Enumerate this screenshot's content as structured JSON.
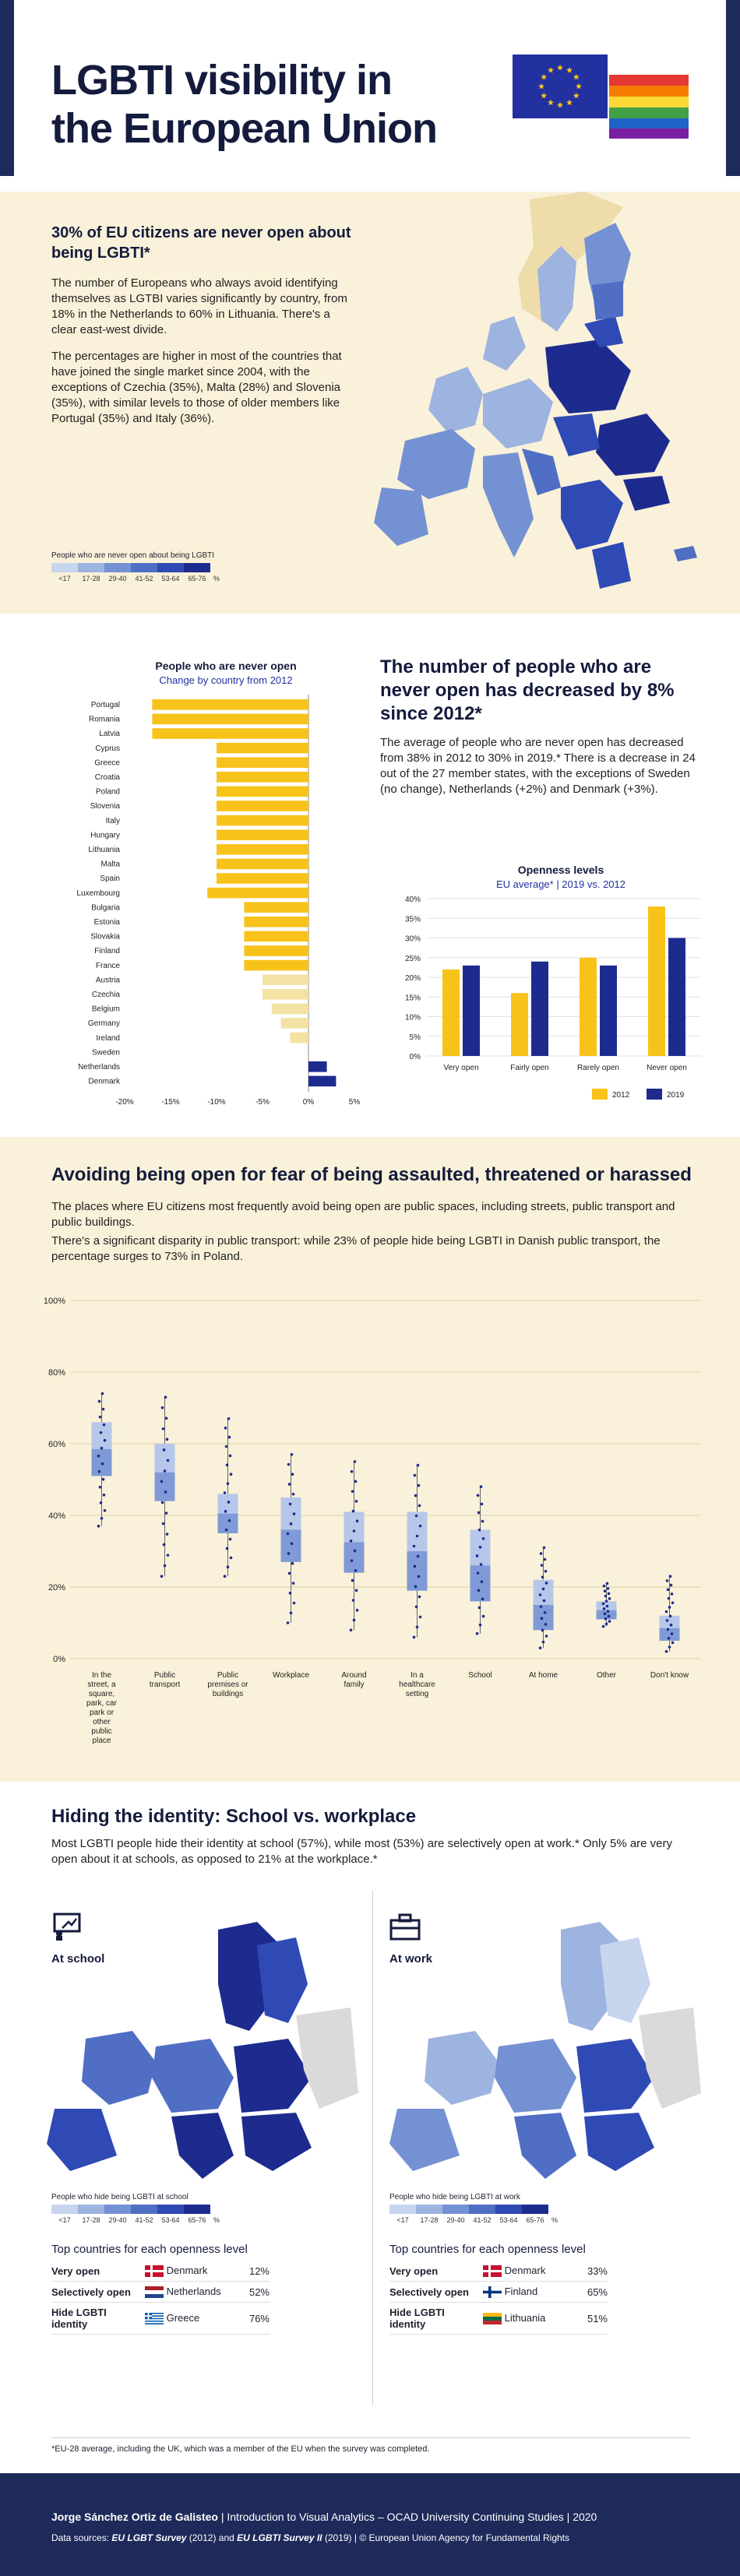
{
  "header": {
    "title_line1": "LGBTI visibility in",
    "title_line2": "the European Union",
    "flags": [
      "eu-flag",
      "rainbow-flag"
    ]
  },
  "section1": {
    "heading": "30% of EU citizens are never open about being LGBTI*",
    "p1": "The number of Europeans who always avoid identifying themselves as LGTBI varies significantly by country, from 18% in the Netherlands to 60% in Lithuania. There's a clear east-west divide.",
    "p2": "The percentages are higher in most of the countries that have joined the single market since 2004, with the exceptions of Czechia (35%), Malta (28%) and Slovenia (35%), with similar levels to those of older members like Portugal (35%) and Italy (36%).",
    "legend_title": "People who are never open about being LGBTI",
    "legend_labels": [
      "<17",
      "17-28",
      "29-40",
      "41-52",
      "53-64",
      "65-76",
      "%"
    ],
    "legend_colors": [
      "#c8d5ef",
      "#9db3e0",
      "#7491d3",
      "#4f6ec4",
      "#2f4ab5",
      "#1d2b8f"
    ]
  },
  "section2": {
    "heading": "The number of people who are never open has decreased by 8% since 2012*",
    "p1": "The average of people who are never open has decreased from 38% in 2012 to 30% in 2019.* There is a decrease in 24 out of the 27 member states, with the exceptions of Sweden (no change), Netherlands (+2%) and Denmark (+3%).",
    "colors": {
      "decrease_strong": "#f7c31b",
      "decrease_light": "#f3e2a4",
      "increase": "#1d2b8f",
      "y2012": "#f7c31b",
      "y2019": "#1d2b8f"
    }
  },
  "section3": {
    "heading": "Avoiding being open for fear of being assaulted, threatened or harassed",
    "p1": "The places where EU citizens most frequently avoid being open are public spaces, including streets, public transport and public buildings.",
    "p2": "There's a significant disparity in public transport: while 23% of people hide being LGBTI in Danish public transport, the percentage surges to 73% in Poland."
  },
  "section4": {
    "heading": "Hiding the identity: School vs. workplace",
    "p1": "Most LGBTI people hide their identity at school (57%), while most (53%) are selectively open at work.* Only 5% are very open about it at schools, as opposed to 21% at the workplace.*",
    "school": {
      "label": "At school",
      "icon": "school-icon",
      "legend_title": "People who hide being LGBTI at school",
      "top_title": "Top countries for each openness level",
      "rows": [
        {
          "level": "Very open",
          "country": "Denmark",
          "value": "12%",
          "flag": "dk"
        },
        {
          "level": "Selectively open",
          "country": "Netherlands",
          "value": "52%",
          "flag": "nl"
        },
        {
          "level": "Hide LGBTI identity",
          "country": "Greece",
          "value": "76%",
          "flag": "gr"
        }
      ]
    },
    "work": {
      "label": "At work",
      "icon": "briefcase-icon",
      "legend_title": "People who hide being LGBTI at work",
      "top_title": "Top countries for each openness level",
      "rows": [
        {
          "level": "Very open",
          "country": "Denmark",
          "value": "33%",
          "flag": "dk"
        },
        {
          "level": "Selectively open",
          "country": "Finland",
          "value": "65%",
          "flag": "fi"
        },
        {
          "level": "Hide LGBTI identity",
          "country": "Lithuania",
          "value": "51%",
          "flag": "lt"
        }
      ]
    },
    "legend_labels": [
      "<17",
      "17-28",
      "29-40",
      "41-52",
      "53-64",
      "65-76",
      "%"
    ],
    "footnote": "*EU-28 average, including the UK, which was a member of the EU when the survey was completed."
  },
  "footer": {
    "author": "Jorge Sánchez Ortiz de Galisteo",
    "course": "Introduction to Visual Analytics – OCAD University Continuing Studies",
    "year": "2020",
    "sources_label": "Data sources:",
    "source1": "EU LGBT Survey",
    "source1_year": "(2012) and",
    "source2": "EU LGBTI Survey II",
    "source2_rest": "(2019) | © European Union Agency for Fundamental Rights"
  },
  "chart_data": [
    {
      "type": "bar",
      "title": "People who are never open",
      "subtitle": "Change by country from 2012",
      "orientation": "horizontal",
      "categories": [
        "Portugal",
        "Romania",
        "Latvia",
        "Cyprus",
        "Greece",
        "Croatia",
        "Poland",
        "Slovenia",
        "Italy",
        "Hungary",
        "Lithuania",
        "Malta",
        "Spain",
        "Luxembourg",
        "Bulgaria",
        "Estonia",
        "Slovakia",
        "Finland",
        "France",
        "Austria",
        "Czechia",
        "Belgium",
        "Germany",
        "Ireland",
        "Sweden",
        "Netherlands",
        "Denmark"
      ],
      "values": [
        -17,
        -17,
        -17,
        -10,
        -10,
        -10,
        -10,
        -10,
        -10,
        -10,
        -10,
        -10,
        -10,
        -11,
        -7,
        -7,
        -7,
        -7,
        -7,
        -5,
        -5,
        -4,
        -3,
        -2,
        0,
        2,
        3
      ],
      "xlim": [
        -20,
        5
      ],
      "xticks": [
        "-20%",
        "-15%",
        "-10%",
        "-5%",
        "0%",
        "5%"
      ]
    },
    {
      "type": "bar",
      "title": "Openness levels",
      "subtitle": "EU average* | 2019 vs. 2012",
      "categories": [
        "Very open",
        "Fairly open",
        "Rarely open",
        "Never open"
      ],
      "series": [
        {
          "name": "2012",
          "values": [
            22,
            16,
            25,
            38
          ]
        },
        {
          "name": "2019",
          "values": [
            23,
            24,
            23,
            30
          ]
        }
      ],
      "ylim": [
        0,
        40
      ],
      "yticks": [
        "0%",
        "5%",
        "10%",
        "15%",
        "20%",
        "25%",
        "30%",
        "35%",
        "40%"
      ]
    },
    {
      "type": "scatter",
      "subtitle": "box plot of country values per place",
      "categories": [
        "In the street, a square, park, car park or other public place",
        "Public transport",
        "Public premises or buildings",
        "Workplace",
        "Around family",
        "In a healthcare setting",
        "School",
        "At home",
        "Other",
        "Don't know"
      ],
      "boxes": [
        {
          "min": 37,
          "q1": 51,
          "q3": 66,
          "max": 74
        },
        {
          "min": 23,
          "q1": 44,
          "q3": 60,
          "max": 73
        },
        {
          "min": 23,
          "q1": 35,
          "q3": 46,
          "max": 67
        },
        {
          "min": 10,
          "q1": 27,
          "q3": 45,
          "max": 57
        },
        {
          "min": 8,
          "q1": 24,
          "q3": 41,
          "max": 55
        },
        {
          "min": 6,
          "q1": 19,
          "q3": 41,
          "max": 54
        },
        {
          "min": 7,
          "q1": 16,
          "q3": 36,
          "max": 48
        },
        {
          "min": 3,
          "q1": 8,
          "q3": 22,
          "max": 31
        },
        {
          "min": 9,
          "q1": 11,
          "q3": 16,
          "max": 21
        },
        {
          "min": 2,
          "q1": 5,
          "q3": 12,
          "max": 23
        }
      ],
      "ylim": [
        0,
        100
      ],
      "yticks": [
        "0%",
        "20%",
        "40%",
        "60%",
        "80%",
        "100%"
      ]
    }
  ]
}
